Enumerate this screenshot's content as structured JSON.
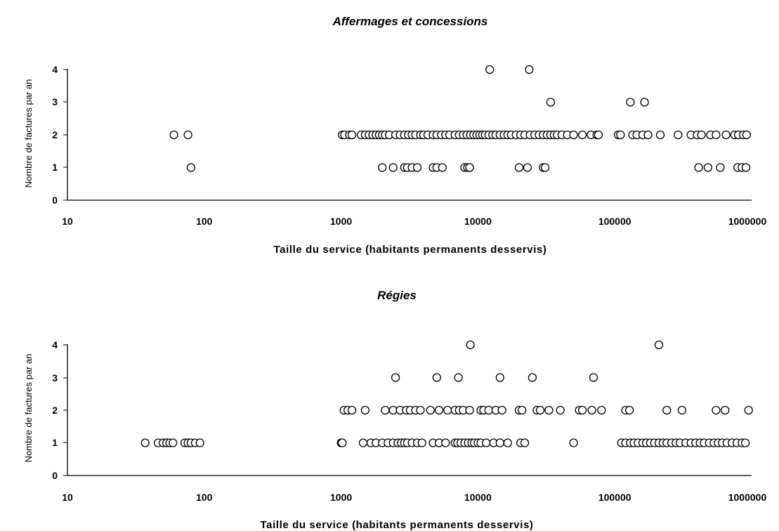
{
  "chart_data": [
    {
      "type": "scatter",
      "title": "Affermages et concessions",
      "xlabel": "Taille du service (habitants permanents desservis)",
      "ylabel": "Nombre de factures par an",
      "xscale": "log",
      "xlim": [
        10,
        1000000
      ],
      "ylim": [
        0,
        4
      ],
      "xticks": [
        "10",
        "100",
        "1000",
        "10000",
        "100000",
        "1000000"
      ],
      "yticks": [
        "0",
        "1",
        "2",
        "3",
        "4"
      ],
      "grid": false,
      "legend": "none",
      "series": [
        {
          "points": [
            [
              60,
              2
            ],
            [
              76,
              2
            ],
            [
              80,
              1
            ],
            [
              1020,
              2
            ],
            [
              1060,
              2
            ],
            [
              1150,
              2
            ],
            [
              1200,
              2
            ],
            [
              1400,
              2
            ],
            [
              1500,
              2
            ],
            [
              1600,
              2
            ],
            [
              1700,
              2
            ],
            [
              1800,
              2
            ],
            [
              1900,
              2
            ],
            [
              2000,
              2
            ],
            [
              2100,
              2
            ],
            [
              2250,
              2
            ],
            [
              2500,
              2
            ],
            [
              2700,
              2
            ],
            [
              2900,
              2
            ],
            [
              3100,
              2
            ],
            [
              3300,
              2
            ],
            [
              3500,
              2
            ],
            [
              3800,
              2
            ],
            [
              4000,
              2
            ],
            [
              4300,
              2
            ],
            [
              4700,
              2
            ],
            [
              5000,
              2
            ],
            [
              5400,
              2
            ],
            [
              5800,
              2
            ],
            [
              6200,
              2
            ],
            [
              6800,
              2
            ],
            [
              7300,
              2
            ],
            [
              7800,
              2
            ],
            [
              8300,
              2
            ],
            [
              8800,
              2
            ],
            [
              9300,
              2
            ],
            [
              9800,
              2
            ],
            [
              10300,
              2
            ],
            [
              10800,
              2
            ],
            [
              11300,
              2
            ],
            [
              12000,
              2
            ],
            [
              12800,
              2
            ],
            [
              13500,
              2
            ],
            [
              14500,
              2
            ],
            [
              15500,
              2
            ],
            [
              16500,
              2
            ],
            [
              17500,
              2
            ],
            [
              19000,
              2
            ],
            [
              20500,
              2
            ],
            [
              22000,
              2
            ],
            [
              24000,
              2
            ],
            [
              26000,
              2
            ],
            [
              28000,
              2
            ],
            [
              30000,
              2
            ],
            [
              32000,
              2
            ],
            [
              34000,
              2
            ],
            [
              36000,
              2
            ],
            [
              38000,
              2
            ],
            [
              41000,
              2
            ],
            [
              45000,
              2
            ],
            [
              50000,
              2
            ],
            [
              58000,
              2
            ],
            [
              67000,
              2
            ],
            [
              74000,
              2
            ],
            [
              76000,
              2
            ],
            [
              106000,
              2
            ],
            [
              110000,
              2
            ],
            [
              135000,
              2
            ],
            [
              145000,
              2
            ],
            [
              160000,
              2
            ],
            [
              175000,
              2
            ],
            [
              215000,
              2
            ],
            [
              290000,
              2
            ],
            [
              360000,
              2
            ],
            [
              400000,
              2
            ],
            [
              430000,
              2
            ],
            [
              500000,
              2
            ],
            [
              550000,
              2
            ],
            [
              650000,
              2
            ],
            [
              750000,
              2
            ],
            [
              800000,
              2
            ],
            [
              870000,
              2
            ],
            [
              920000,
              2
            ],
            [
              2000,
              1
            ],
            [
              2400,
              1
            ],
            [
              2900,
              1
            ],
            [
              3050,
              1
            ],
            [
              3300,
              1
            ],
            [
              3600,
              1
            ],
            [
              4700,
              1
            ],
            [
              5000,
              1
            ],
            [
              5500,
              1
            ],
            [
              8000,
              1
            ],
            [
              8400,
              1
            ],
            [
              8700,
              1
            ],
            [
              20000,
              1
            ],
            [
              23000,
              1
            ],
            [
              30000,
              1
            ],
            [
              31000,
              1
            ],
            [
              410000,
              1
            ],
            [
              480000,
              1
            ],
            [
              590000,
              1
            ],
            [
              790000,
              1
            ],
            [
              850000,
              1
            ],
            [
              910000,
              1
            ],
            [
              34000,
              3
            ],
            [
              130000,
              3
            ],
            [
              165000,
              3
            ],
            [
              12200,
              4
            ],
            [
              23700,
              4
            ]
          ]
        }
      ]
    },
    {
      "type": "scatter",
      "title": "Régies",
      "xlabel": "Taille du service (habitants permanents desservis)",
      "ylabel": "Nombre de factures par an",
      "xscale": "log",
      "xlim": [
        10,
        1000000
      ],
      "ylim": [
        0,
        4
      ],
      "xticks": [
        "10",
        "100",
        "1000",
        "10000",
        "100000",
        "1000000"
      ],
      "yticks": [
        "0",
        "1",
        "2",
        "3",
        "4"
      ],
      "grid": false,
      "legend": "none",
      "series": [
        {
          "points": [
            [
              37,
              1
            ],
            [
              46,
              1
            ],
            [
              50,
              1
            ],
            [
              53,
              1
            ],
            [
              56,
              1
            ],
            [
              59,
              1
            ],
            [
              72,
              1
            ],
            [
              76,
              1
            ],
            [
              80,
              1
            ],
            [
              86,
              1
            ],
            [
              93,
              1
            ],
            [
              1000,
              1
            ],
            [
              1020,
              1
            ],
            [
              1450,
              1
            ],
            [
              1650,
              1
            ],
            [
              1800,
              1
            ],
            [
              2000,
              1
            ],
            [
              2200,
              1
            ],
            [
              2400,
              1
            ],
            [
              2600,
              1
            ],
            [
              2750,
              1
            ],
            [
              2900,
              1
            ],
            [
              3050,
              1
            ],
            [
              3300,
              1
            ],
            [
              3600,
              1
            ],
            [
              3900,
              1
            ],
            [
              4700,
              1
            ],
            [
              5200,
              1
            ],
            [
              5800,
              1
            ],
            [
              6800,
              1
            ],
            [
              7100,
              1
            ],
            [
              7500,
              1
            ],
            [
              8000,
              1
            ],
            [
              8500,
              1
            ],
            [
              9000,
              1
            ],
            [
              9400,
              1
            ],
            [
              10000,
              1
            ],
            [
              10500,
              1
            ],
            [
              11500,
              1
            ],
            [
              13000,
              1
            ],
            [
              14500,
              1
            ],
            [
              16500,
              1
            ],
            [
              20500,
              1
            ],
            [
              22000,
              1
            ],
            [
              50000,
              1
            ],
            [
              112000,
              1
            ],
            [
              120000,
              1
            ],
            [
              130000,
              1
            ],
            [
              138000,
              1
            ],
            [
              148000,
              1
            ],
            [
              160000,
              1
            ],
            [
              170000,
              1
            ],
            [
              182000,
              1
            ],
            [
              195000,
              1
            ],
            [
              210000,
              1
            ],
            [
              225000,
              1
            ],
            [
              240000,
              1
            ],
            [
              260000,
              1
            ],
            [
              280000,
              1
            ],
            [
              300000,
              1
            ],
            [
              330000,
              1
            ],
            [
              360000,
              1
            ],
            [
              390000,
              1
            ],
            [
              420000,
              1
            ],
            [
              450000,
              1
            ],
            [
              490000,
              1
            ],
            [
              530000,
              1
            ],
            [
              570000,
              1
            ],
            [
              610000,
              1
            ],
            [
              660000,
              1
            ],
            [
              720000,
              1
            ],
            [
              780000,
              1
            ],
            [
              850000,
              1
            ],
            [
              900000,
              1
            ],
            [
              1050,
              2
            ],
            [
              1120,
              2
            ],
            [
              1200,
              2
            ],
            [
              1500,
              2
            ],
            [
              2100,
              2
            ],
            [
              2400,
              2
            ],
            [
              2700,
              2
            ],
            [
              3000,
              2
            ],
            [
              3200,
              2
            ],
            [
              3500,
              2
            ],
            [
              3800,
              2
            ],
            [
              4500,
              2
            ],
            [
              5200,
              2
            ],
            [
              6000,
              2
            ],
            [
              6800,
              2
            ],
            [
              7300,
              2
            ],
            [
              7800,
              2
            ],
            [
              8700,
              2
            ],
            [
              10500,
              2
            ],
            [
              11000,
              2
            ],
            [
              12000,
              2
            ],
            [
              13500,
              2
            ],
            [
              15000,
              2
            ],
            [
              20000,
              2
            ],
            [
              21000,
              2
            ],
            [
              27000,
              2
            ],
            [
              28500,
              2
            ],
            [
              33000,
              2
            ],
            [
              40000,
              2
            ],
            [
              55000,
              2
            ],
            [
              58000,
              2
            ],
            [
              68000,
              2
            ],
            [
              80000,
              2
            ],
            [
              120000,
              2
            ],
            [
              128000,
              2
            ],
            [
              240000,
              2
            ],
            [
              310000,
              2
            ],
            [
              550000,
              2
            ],
            [
              640000,
              2
            ],
            [
              950000,
              2
            ],
            [
              2500,
              3
            ],
            [
              5000,
              3
            ],
            [
              7200,
              3
            ],
            [
              14500,
              3
            ],
            [
              25000,
              3
            ],
            [
              70000,
              3
            ],
            [
              8800,
              4
            ],
            [
              210000,
              4
            ]
          ]
        }
      ]
    }
  ]
}
